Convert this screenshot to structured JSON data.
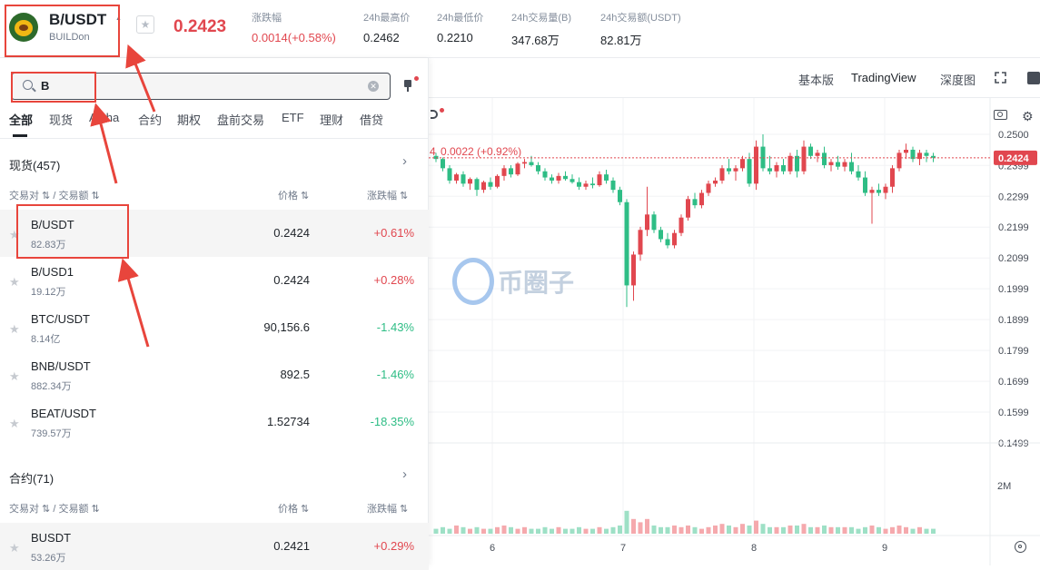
{
  "header": {
    "symbol": "B/USDT",
    "name": "BUILDon",
    "last_price": "0.2423",
    "stats": [
      {
        "label": "涨跌幅",
        "value": "0.0014(+0.58%)"
      },
      {
        "label": "24h最高价",
        "value": "0.2462"
      },
      {
        "label": "24h最低价",
        "value": "0.2210"
      },
      {
        "label": "24h交易量(B)",
        "value": "347.68万"
      },
      {
        "label": "24h交易额(USDT)",
        "value": "82.81万"
      }
    ]
  },
  "search": {
    "value": "B"
  },
  "tabs": [
    "全部",
    "现货",
    "Alpha",
    "合约",
    "期权",
    "盘前交易",
    "ETF",
    "理财",
    "借贷"
  ],
  "spot": {
    "title": "现货(457)",
    "col_pair": "交易对",
    "col_volume": "交易额",
    "col_price": "价格",
    "col_change": "涨跌幅",
    "rows": [
      {
        "pair": "B/USDT",
        "volume": "82.83万",
        "price": "0.2424",
        "change": "+0.61%"
      },
      {
        "pair": "B/USD1",
        "volume": "19.12万",
        "price": "0.2424",
        "change": "+0.28%"
      },
      {
        "pair": "BTC/USDT",
        "volume": "8.14亿",
        "price": "90,156.6",
        "change": "-1.43%"
      },
      {
        "pair": "BNB/USDT",
        "volume": "882.34万",
        "price": "892.5",
        "change": "-1.46%"
      },
      {
        "pair": "BEAT/USDT",
        "volume": "739.57万",
        "price": "1.52734",
        "change": "-18.35%"
      }
    ]
  },
  "futures": {
    "title": "合约(71)",
    "col_pair": "交易对",
    "col_volume": "交易额",
    "col_price": "价格",
    "col_change": "涨跌幅",
    "rows": [
      {
        "pair": "BUSDT",
        "volume": "53.26万",
        "price": "0.2421",
        "change": "+0.29%"
      }
    ]
  },
  "chart_toolbar": {
    "basic": "基本版",
    "tradingview": "TradingView",
    "depth": "深度图"
  },
  "chart_data": {
    "type": "candlestick",
    "legend_fragment": "4",
    "legend_change": "0.0022 (+0.92%)",
    "y_ticks": [
      "0.2500",
      "0.2399",
      "0.2299",
      "0.2199",
      "0.2099",
      "0.1999",
      "0.1899",
      "0.1799",
      "0.1699",
      "0.1599",
      "0.1499"
    ],
    "y_range": [
      0.1499,
      0.25
    ],
    "current_price": "0.2424",
    "volume_tick": "2M",
    "x_ticks": [
      "6",
      "7",
      "8",
      "9"
    ],
    "candles": [
      [
        0.243,
        0.244,
        0.241,
        0.242
      ],
      [
        0.242,
        0.2425,
        0.238,
        0.239
      ],
      [
        0.239,
        0.24,
        0.234,
        0.235
      ],
      [
        0.235,
        0.2375,
        0.234,
        0.237
      ],
      [
        0.237,
        0.238,
        0.233,
        0.234
      ],
      [
        0.234,
        0.236,
        0.232,
        0.2355
      ],
      [
        0.2355,
        0.236,
        0.23,
        0.232
      ],
      [
        0.232,
        0.235,
        0.231,
        0.2345
      ],
      [
        0.2345,
        0.236,
        0.232,
        0.233
      ],
      [
        0.233,
        0.237,
        0.2325,
        0.2365
      ],
      [
        0.2365,
        0.24,
        0.235,
        0.239
      ],
      [
        0.239,
        0.24,
        0.236,
        0.237
      ],
      [
        0.237,
        0.241,
        0.2365,
        0.2405
      ],
      [
        0.2405,
        0.242,
        0.239,
        0.241
      ],
      [
        0.241,
        0.243,
        0.2395,
        0.24
      ],
      [
        0.24,
        0.241,
        0.237,
        0.238
      ],
      [
        0.238,
        0.239,
        0.235,
        0.236
      ],
      [
        0.236,
        0.237,
        0.234,
        0.235
      ],
      [
        0.235,
        0.2375,
        0.234,
        0.2365
      ],
      [
        0.2365,
        0.238,
        0.235,
        0.2355
      ],
      [
        0.2355,
        0.237,
        0.234,
        0.2345
      ],
      [
        0.2345,
        0.236,
        0.232,
        0.233
      ],
      [
        0.233,
        0.235,
        0.232,
        0.234
      ],
      [
        0.234,
        0.236,
        0.2325,
        0.2335
      ],
      [
        0.2335,
        0.238,
        0.233,
        0.237
      ],
      [
        0.237,
        0.2385,
        0.234,
        0.235
      ],
      [
        0.235,
        0.236,
        0.231,
        0.232
      ],
      [
        0.232,
        0.233,
        0.227,
        0.228
      ],
      [
        0.228,
        0.229,
        0.194,
        0.201
      ],
      [
        0.201,
        0.212,
        0.196,
        0.211
      ],
      [
        0.211,
        0.22,
        0.209,
        0.219
      ],
      [
        0.219,
        0.233,
        0.217,
        0.224
      ],
      [
        0.224,
        0.225,
        0.218,
        0.219
      ],
      [
        0.219,
        0.22,
        0.215,
        0.216
      ],
      [
        0.216,
        0.218,
        0.213,
        0.214
      ],
      [
        0.214,
        0.219,
        0.213,
        0.218
      ],
      [
        0.218,
        0.224,
        0.217,
        0.223
      ],
      [
        0.223,
        0.23,
        0.222,
        0.229
      ],
      [
        0.229,
        0.231,
        0.226,
        0.227
      ],
      [
        0.227,
        0.232,
        0.226,
        0.231
      ],
      [
        0.231,
        0.235,
        0.23,
        0.234
      ],
      [
        0.234,
        0.236,
        0.233,
        0.235
      ],
      [
        0.235,
        0.24,
        0.234,
        0.239
      ],
      [
        0.239,
        0.242,
        0.237,
        0.238
      ],
      [
        0.238,
        0.24,
        0.235,
        0.239
      ],
      [
        0.239,
        0.243,
        0.238,
        0.242
      ],
      [
        0.242,
        0.244,
        0.233,
        0.234
      ],
      [
        0.234,
        0.248,
        0.232,
        0.246
      ],
      [
        0.246,
        0.25,
        0.238,
        0.239
      ],
      [
        0.239,
        0.243,
        0.237,
        0.238
      ],
      [
        0.238,
        0.241,
        0.236,
        0.24
      ],
      [
        0.24,
        0.242,
        0.237,
        0.238
      ],
      [
        0.238,
        0.244,
        0.237,
        0.243
      ],
      [
        0.243,
        0.245,
        0.236,
        0.238
      ],
      [
        0.238,
        0.248,
        0.237,
        0.246
      ],
      [
        0.246,
        0.247,
        0.242,
        0.243
      ],
      [
        0.243,
        0.245,
        0.241,
        0.244
      ],
      [
        0.244,
        0.246,
        0.239,
        0.24
      ],
      [
        0.24,
        0.242,
        0.238,
        0.241
      ],
      [
        0.241,
        0.243,
        0.2385,
        0.2395
      ],
      [
        0.2395,
        0.242,
        0.238,
        0.241
      ],
      [
        0.241,
        0.244,
        0.237,
        0.238
      ],
      [
        0.238,
        0.24,
        0.235,
        0.236
      ],
      [
        0.236,
        0.238,
        0.23,
        0.231
      ],
      [
        0.231,
        0.233,
        0.221,
        0.232
      ],
      [
        0.232,
        0.234,
        0.23,
        0.231
      ],
      [
        0.231,
        0.234,
        0.229,
        0.233
      ],
      [
        0.233,
        0.24,
        0.231,
        0.239
      ],
      [
        0.239,
        0.245,
        0.238,
        0.244
      ],
      [
        0.244,
        0.247,
        0.242,
        0.245
      ],
      [
        0.245,
        0.246,
        0.241,
        0.242
      ],
      [
        0.242,
        0.245,
        0.24,
        0.244
      ],
      [
        0.244,
        0.245,
        0.241,
        0.243
      ],
      [
        0.243,
        0.244,
        0.241,
        0.2424
      ]
    ],
    "volumes": [
      0.3,
      0.4,
      0.3,
      0.5,
      0.4,
      0.3,
      0.4,
      0.3,
      0.3,
      0.4,
      0.5,
      0.4,
      0.3,
      0.4,
      0.3,
      0.3,
      0.4,
      0.3,
      0.4,
      0.3,
      0.3,
      0.4,
      0.3,
      0.3,
      0.4,
      0.3,
      0.4,
      0.5,
      1.4,
      0.9,
      0.7,
      0.9,
      0.5,
      0.4,
      0.4,
      0.5,
      0.4,
      0.5,
      0.4,
      0.3,
      0.4,
      0.5,
      0.6,
      0.5,
      0.4,
      0.6,
      0.5,
      0.8,
      0.6,
      0.4,
      0.4,
      0.4,
      0.5,
      0.5,
      0.6,
      0.4,
      0.4,
      0.5,
      0.4,
      0.4,
      0.4,
      0.4,
      0.3,
      0.4,
      0.5,
      0.4,
      0.3,
      0.4,
      0.5,
      0.4,
      0.3,
      0.4,
      0.3,
      0.3
    ]
  },
  "watermark": "币圈子"
}
